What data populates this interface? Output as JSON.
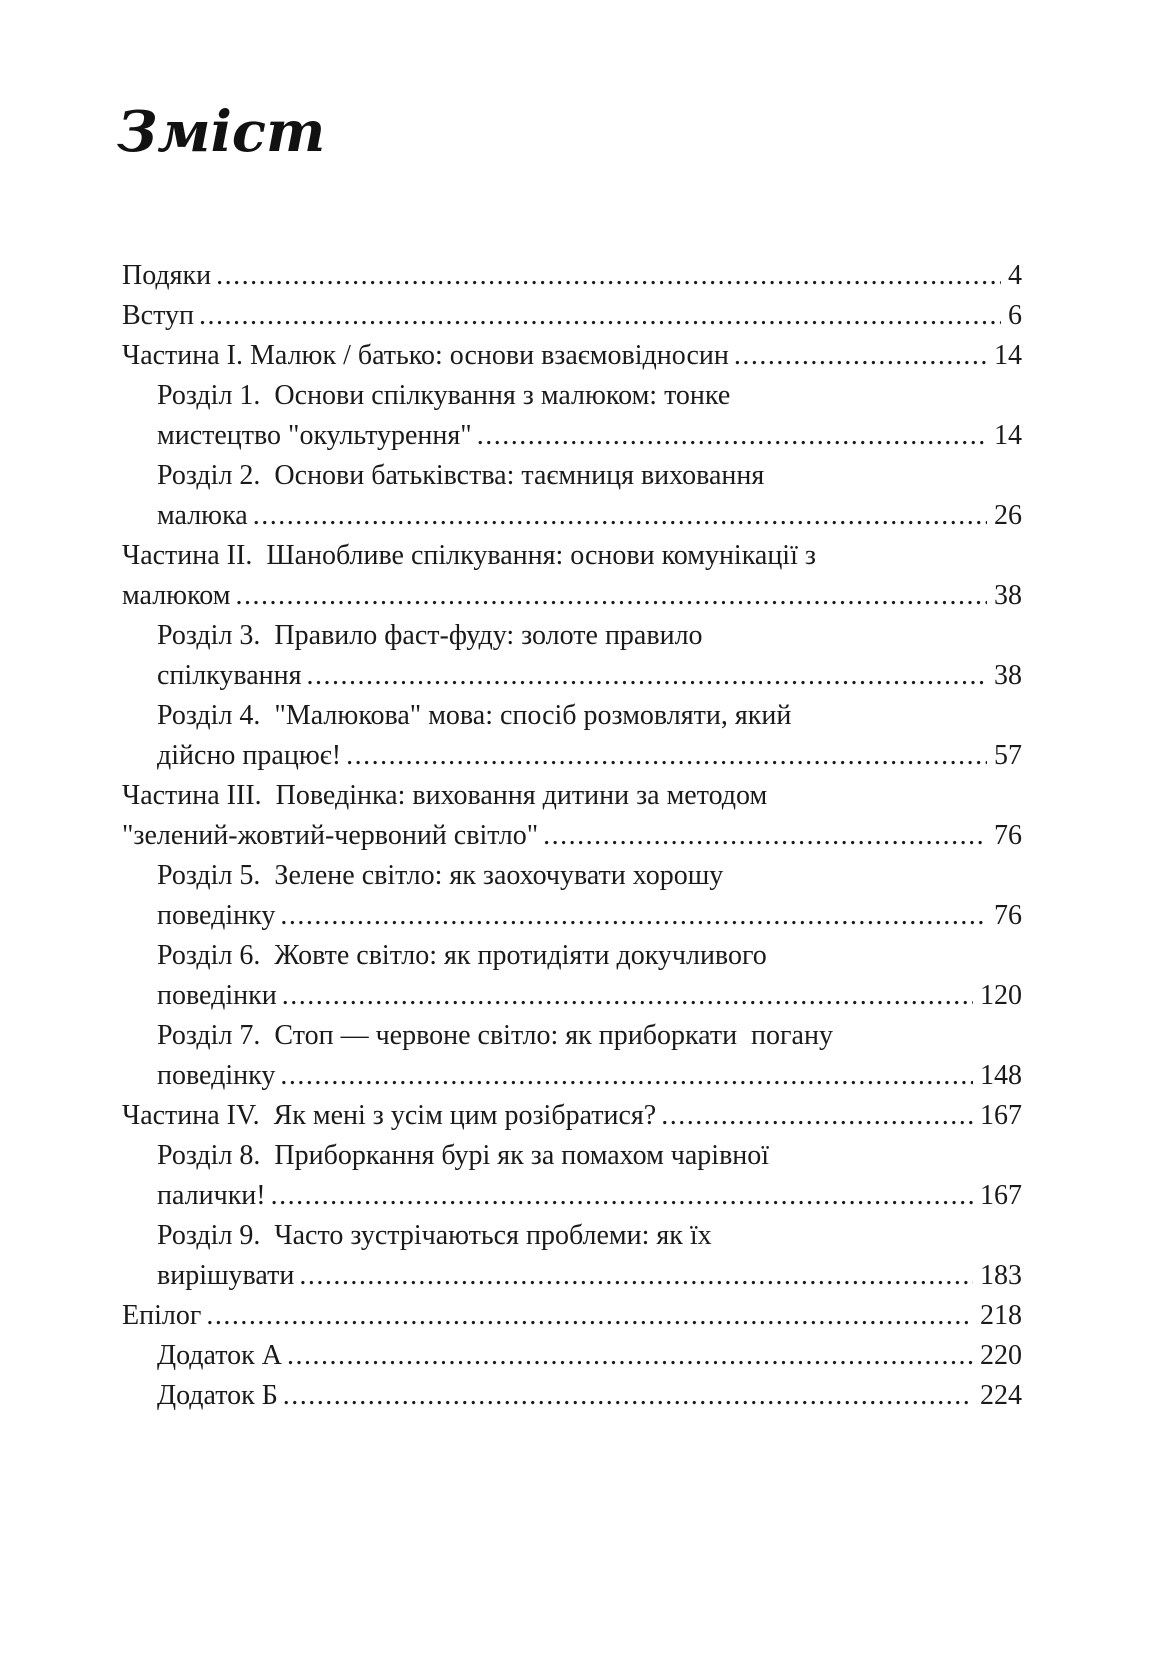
{
  "page_title": "Зміст",
  "toc": {
    "entries": [
      {
        "level": "top",
        "lines": [
          "Подяки"
        ],
        "page": "4"
      },
      {
        "level": "top",
        "lines": [
          "Вступ"
        ],
        "page": "6"
      },
      {
        "level": "top",
        "lines": [
          "Частина I. Малюк / батько: основи взаємовідносин"
        ],
        "page": "14"
      },
      {
        "level": "chapter",
        "lines": [
          "Розділ 1.  Основи спілкування з малюком: тонке",
          "мистецтво \"окультурення\""
        ],
        "page": "14"
      },
      {
        "level": "chapter",
        "lines": [
          "Розділ 2.  Основи батьківства: таємниця виховання",
          "малюка"
        ],
        "page": "26"
      },
      {
        "level": "top",
        "lines": [
          "Частина II.  Шанобливе спілкування: основи комунікації з",
          "малюком"
        ],
        "page": "38"
      },
      {
        "level": "chapter",
        "lines": [
          "Розділ 3.  Правило фаст-фуду: золоте правило",
          "спілкування"
        ],
        "page": "38"
      },
      {
        "level": "chapter",
        "lines": [
          "Розділ 4.  \"Малюкова\" мова: спосіб розмовляти, який",
          "дійсно працює!"
        ],
        "page": "57"
      },
      {
        "level": "top",
        "lines": [
          "Частина III.  Поведінка: виховання дитини за методом",
          "\"зелений-жовтий-червоний світло\""
        ],
        "page": "76"
      },
      {
        "level": "chapter",
        "lines": [
          "Розділ 5.  Зелене світло: як заохочувати хорошу",
          "поведінку"
        ],
        "page": "76"
      },
      {
        "level": "chapter",
        "lines": [
          "Розділ 6.  Жовте світло: як протидіяти докучливого",
          "поведінки"
        ],
        "page": "120"
      },
      {
        "level": "chapter",
        "lines": [
          "Розділ 7.  Стоп — червоне світло: як приборкати  погану",
          "поведінку"
        ],
        "page": "148"
      },
      {
        "level": "top",
        "lines": [
          "Частина IV.  Як мені з усім цим розібратися?"
        ],
        "page": "167"
      },
      {
        "level": "chapter",
        "lines": [
          "Розділ 8.  Приборкання бурі як за помахом чарівної",
          "палички!"
        ],
        "page": "167"
      },
      {
        "level": "chapter",
        "lines": [
          "Розділ 9.  Часто зустрічаються проблеми: як їх",
          "вирішувати"
        ],
        "page": "183"
      },
      {
        "level": "top",
        "lines": [
          "Епілог"
        ],
        "page": "218"
      },
      {
        "level": "chapter",
        "lines": [
          "Додаток А"
        ],
        "page": "220"
      },
      {
        "level": "chapter",
        "lines": [
          "Додаток Б"
        ],
        "page": "224"
      }
    ]
  }
}
